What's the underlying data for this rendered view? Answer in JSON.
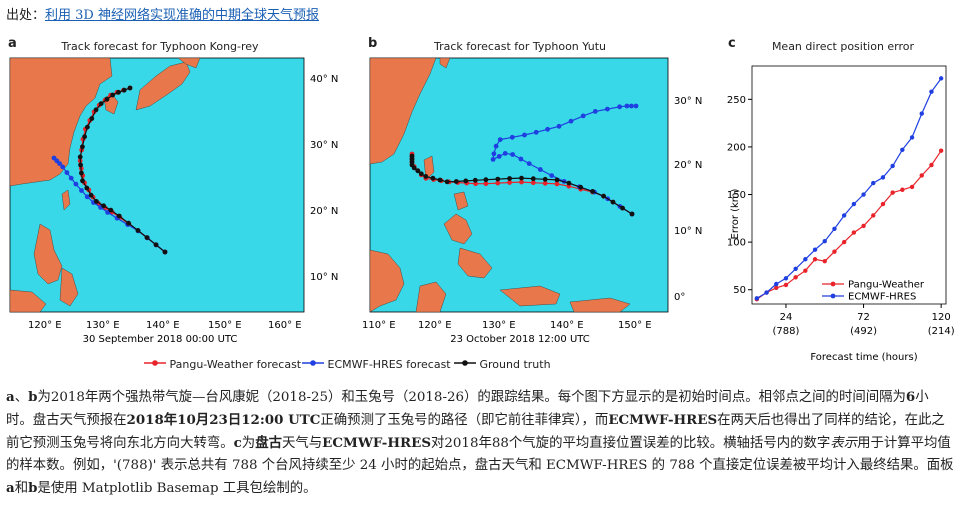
{
  "source": {
    "prefix": "出处：",
    "link_text": "利用 3D 神经网络实现准确的中期全球天气预报"
  },
  "panel_a": {
    "label": "a",
    "title": "Track forecast for Typhoon Kong-rey",
    "date": "30 September 2018 00:00 UTC",
    "x_ticks": [
      "120° E",
      "130° E",
      "140° E",
      "150° E",
      "160° E"
    ],
    "y_ticks": [
      "40° N",
      "30° N",
      "20° N",
      "10° N"
    ]
  },
  "panel_b": {
    "label": "b",
    "title": "Track forecast for Typhoon Yutu",
    "date": "23 October 2018 12:00 UTC",
    "x_ticks": [
      "110° E",
      "120° E",
      "130° E",
      "140° E",
      "150° E"
    ],
    "y_ticks": [
      "30° N",
      "20° N",
      "10° N",
      "0°"
    ]
  },
  "panel_c": {
    "label": "c",
    "title": "Mean direct position error",
    "ylabel": "Error (km)",
    "xlabel": "Forecast time (hours)",
    "x_ticks": [
      "24",
      "72",
      "120"
    ],
    "x_counts": [
      "(788)",
      "(492)",
      "(214)"
    ],
    "y_ticks": [
      "50",
      "100",
      "150",
      "200",
      "250"
    ]
  },
  "legend": {
    "pangu": "Pangu-Weather forecast",
    "ecmwf": "ECMWF-HRES forecast",
    "truth": "Ground truth",
    "pangu_short": "Pangu-Weather",
    "ecmwf_short": "ECMWF-HRES"
  },
  "colors": {
    "pangu": "#e8232a",
    "ecmwf": "#1f3fe0",
    "truth": "#111111",
    "land": "#e8784c",
    "sea": "#38d8e8"
  },
  "caption": {
    "s1": "为2018年两个强热带气旋—台风康妮（2018-25）和玉兔号（2018-26）的跟踪结果。每个图下方显示的是初始时间点。相邻点之间的时间间隔为",
    "s1b": "6",
    "s1c": "小时。盘古天气预报在",
    "s2": "2018年10月23日12:00 UTC",
    "s3": "正确预测了玉兔号的路径（即它前往菲律宾），而",
    "s4": "ECMWF-HRES",
    "s5": "在两天后也得出了同样的结论，在此之前它预测玉兔号将向东北方向大转弯。",
    "s6": "c",
    "s7": "为",
    "s8": "盘古",
    "s9": "天气与",
    "s10": "ECMWF-HRES",
    "s11": "对2018年88个气旋的平均直接位置误差的比较。横轴括号内的数字",
    "s12": "表示",
    "s13": "用于计算平均值的样本数。例如，'(788)' 表示总共有 788 个台风持续至少 24 小时的起始点，盘古天气和 ECMWF-HRES 的 788 个直接定位误差被平均计入最终结果。面板",
    "s14": "a",
    "s15": "和",
    "s16": "b",
    "s17": "是使用 Matplotlib Basemap 工具包绘制的。",
    "lead_a": "a",
    "lead_sep": "、",
    "lead_b": "b"
  },
  "chart_data": {
    "type": "line",
    "title": "Mean direct position error",
    "xlabel": "Forecast time (hours)",
    "ylabel": "Error (km)",
    "x": [
      6,
      12,
      18,
      24,
      30,
      36,
      42,
      48,
      54,
      60,
      66,
      72,
      78,
      84,
      90,
      96,
      102,
      108,
      114,
      120
    ],
    "xlim": [
      3,
      123
    ],
    "ylim": [
      35,
      285
    ],
    "series": [
      {
        "name": "Pangu-Weather",
        "values": [
          40,
          47,
          52,
          55,
          63,
          70,
          82,
          80,
          90,
          100,
          110,
          117,
          128,
          140,
          152,
          155,
          158,
          170,
          181,
          196
        ]
      },
      {
        "name": "ECMWF-HRES",
        "values": [
          41,
          47,
          56,
          62,
          72,
          82,
          92,
          101,
          114,
          128,
          140,
          150,
          162,
          168,
          180,
          197,
          210,
          235,
          258,
          272
        ]
      }
    ],
    "legend": "bottom-right"
  }
}
